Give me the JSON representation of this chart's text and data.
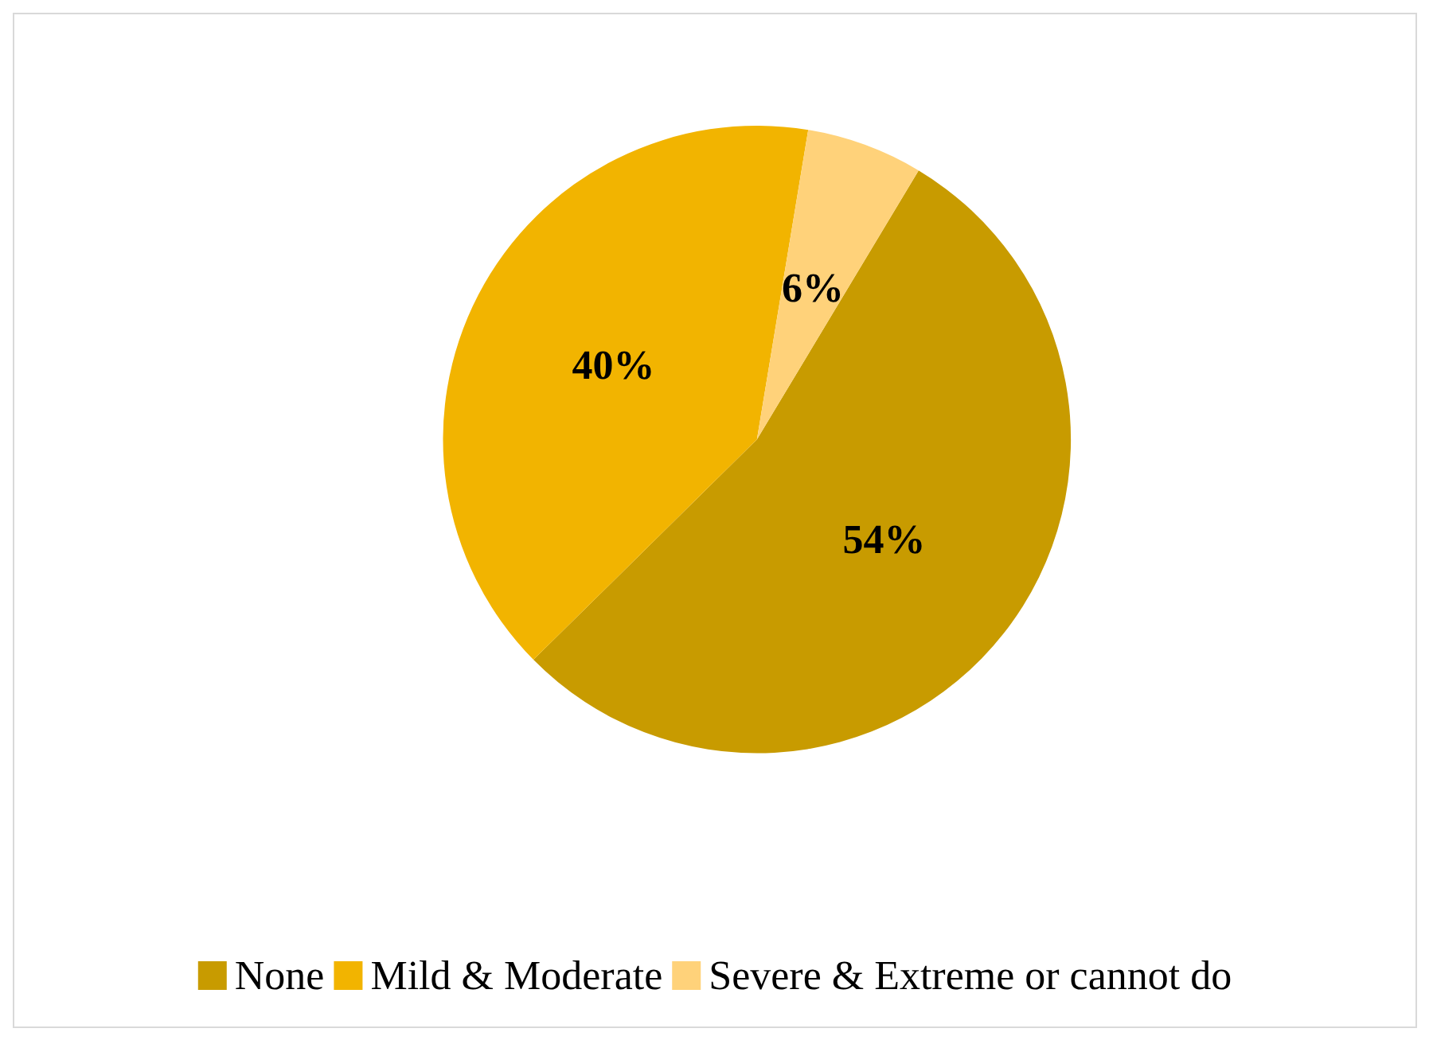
{
  "chart_data": {
    "type": "pie",
    "categories": [
      "None",
      "Mild & Moderate",
      "Severe & Extreme or cannot do"
    ],
    "values": [
      54,
      40,
      6
    ],
    "value_labels": [
      "54%",
      "40%",
      "6%"
    ],
    "colors": [
      "#c89b00",
      "#f2b400",
      "#ffd27a"
    ],
    "legend": "bottom"
  }
}
